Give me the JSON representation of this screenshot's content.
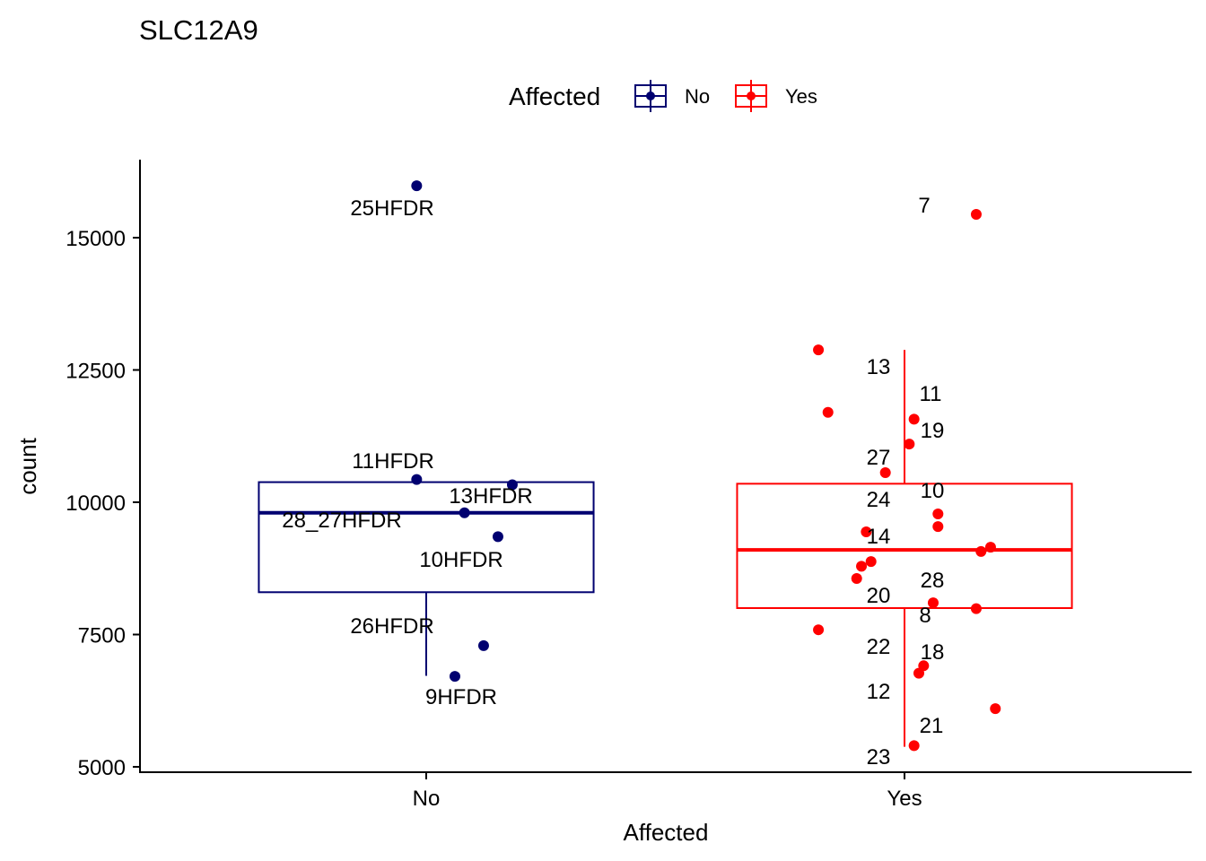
{
  "chart_data": {
    "type": "boxplot",
    "title": "SLC12A9",
    "xlabel": "Affected",
    "ylabel": "count",
    "categories": [
      "No",
      "Yes"
    ],
    "ylim": [
      4870,
      16550
    ],
    "yticks": [
      5000,
      7500,
      10000,
      12500,
      15000
    ],
    "grid": false,
    "legend": {
      "title": "Affected",
      "placement": "top",
      "entries": [
        {
          "label": "No",
          "color": "#000070"
        },
        {
          "label": "Yes",
          "color": "#ff0000"
        }
      ]
    },
    "series": [
      {
        "name": "No",
        "category": "No",
        "color": "#000070",
        "box": {
          "whisker_low": 6720,
          "q1": 8300,
          "median": 9800,
          "q3": 10380,
          "whisker_high": 10380
        },
        "points": [
          {
            "jitter": -0.02,
            "y": 15980,
            "label": "25HFDR"
          },
          {
            "jitter": -0.02,
            "y": 10430,
            "label": "11HFDR"
          },
          {
            "jitter": 0.18,
            "y": 10330,
            "label": "13HFDR"
          },
          {
            "jitter": 0.08,
            "y": 9800,
            "label": "28_27HFDR"
          },
          {
            "jitter": 0.15,
            "y": 9350,
            "label": "10HFDR"
          },
          {
            "jitter": 0.12,
            "y": 7290,
            "label": "26HFDR"
          },
          {
            "jitter": 0.06,
            "y": 6710,
            "label": "9HFDR"
          }
        ]
      },
      {
        "name": "Yes",
        "category": "Yes",
        "color": "#ff0000",
        "box": {
          "whisker_low": 5380,
          "q1": 8000,
          "median": 9100,
          "q3": 10350,
          "whisker_high": 12880
        },
        "points": [
          {
            "jitter": 0.15,
            "y": 15440,
            "label": "7"
          },
          {
            "jitter": -0.18,
            "y": 12880,
            "label": "13"
          },
          {
            "jitter": -0.16,
            "y": 11700,
            "label": ""
          },
          {
            "jitter": 0.02,
            "y": 11570,
            "label": "11"
          },
          {
            "jitter": 0.01,
            "y": 11100,
            "label": "19"
          },
          {
            "jitter": -0.04,
            "y": 10560,
            "label": "27"
          },
          {
            "jitter": 0.07,
            "y": 9780,
            "label": "10"
          },
          {
            "jitter": 0.07,
            "y": 9540,
            "label": "24"
          },
          {
            "jitter": -0.08,
            "y": 9440,
            "label": ""
          },
          {
            "jitter": 0.18,
            "y": 9150,
            "label": ""
          },
          {
            "jitter": 0.16,
            "y": 9070,
            "label": ""
          },
          {
            "jitter": -0.07,
            "y": 8880,
            "label": "14"
          },
          {
            "jitter": -0.09,
            "y": 8790,
            "label": ""
          },
          {
            "jitter": -0.1,
            "y": 8560,
            "label": ""
          },
          {
            "jitter": 0.06,
            "y": 8100,
            "label": "28"
          },
          {
            "jitter": 0.15,
            "y": 7990,
            "label": "20"
          },
          {
            "jitter": -0.18,
            "y": 7590,
            "label": "8"
          },
          {
            "jitter": 0.04,
            "y": 6910,
            "label": "22"
          },
          {
            "jitter": 0.03,
            "y": 6770,
            "label": "18"
          },
          {
            "jitter": 0.19,
            "y": 6100,
            "label": "12"
          },
          {
            "jitter": 0.02,
            "y": 5400,
            "label": "21"
          }
        ],
        "extra_labels": [
          "23"
        ]
      }
    ]
  }
}
